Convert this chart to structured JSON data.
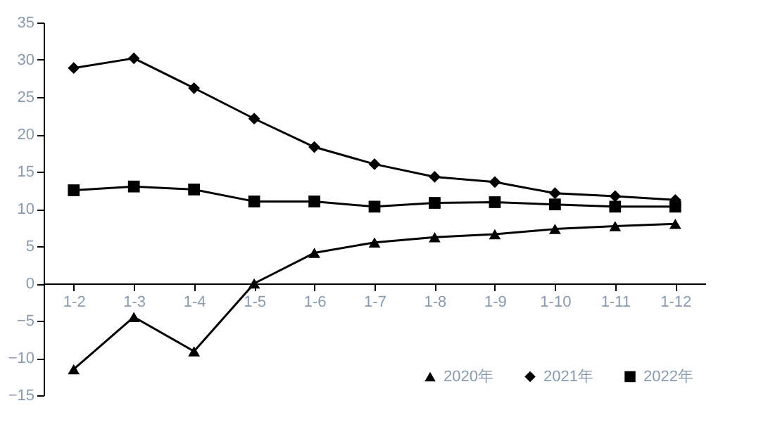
{
  "chart_data": {
    "type": "line",
    "categories": [
      "1-2",
      "1-3",
      "1-4",
      "1-5",
      "1-6",
      "1-7",
      "1-8",
      "1-9",
      "1-10",
      "1-11",
      "1-12"
    ],
    "series": [
      {
        "name": "2020年",
        "color": "#000000",
        "marker": "triangle",
        "values": [
          -11.5,
          -4.5,
          -9.1,
          0,
          4.1,
          5.5,
          6.2,
          6.6,
          7.3,
          7.7,
          8.0
        ]
      },
      {
        "name": "2021年",
        "color": "#000000",
        "marker": "diamond",
        "values": [
          28.9,
          30.2,
          26.2,
          22.1,
          18.3,
          16.0,
          14.3,
          13.6,
          12.1,
          11.7,
          11.2
        ]
      },
      {
        "name": "2022年",
        "color": "#000000",
        "marker": "square",
        "values": [
          12.5,
          13.0,
          12.6,
          11.0,
          11.0,
          10.3,
          10.8,
          10.9,
          10.6,
          10.3,
          10.3
        ]
      }
    ],
    "ylim": [
      -15,
      35
    ],
    "yticks": [
      -15,
      -10,
      -5,
      0,
      5,
      10,
      15,
      20,
      25,
      30,
      35
    ],
    "grid": false,
    "legend": "bottom right",
    "line_style": "solid"
  }
}
